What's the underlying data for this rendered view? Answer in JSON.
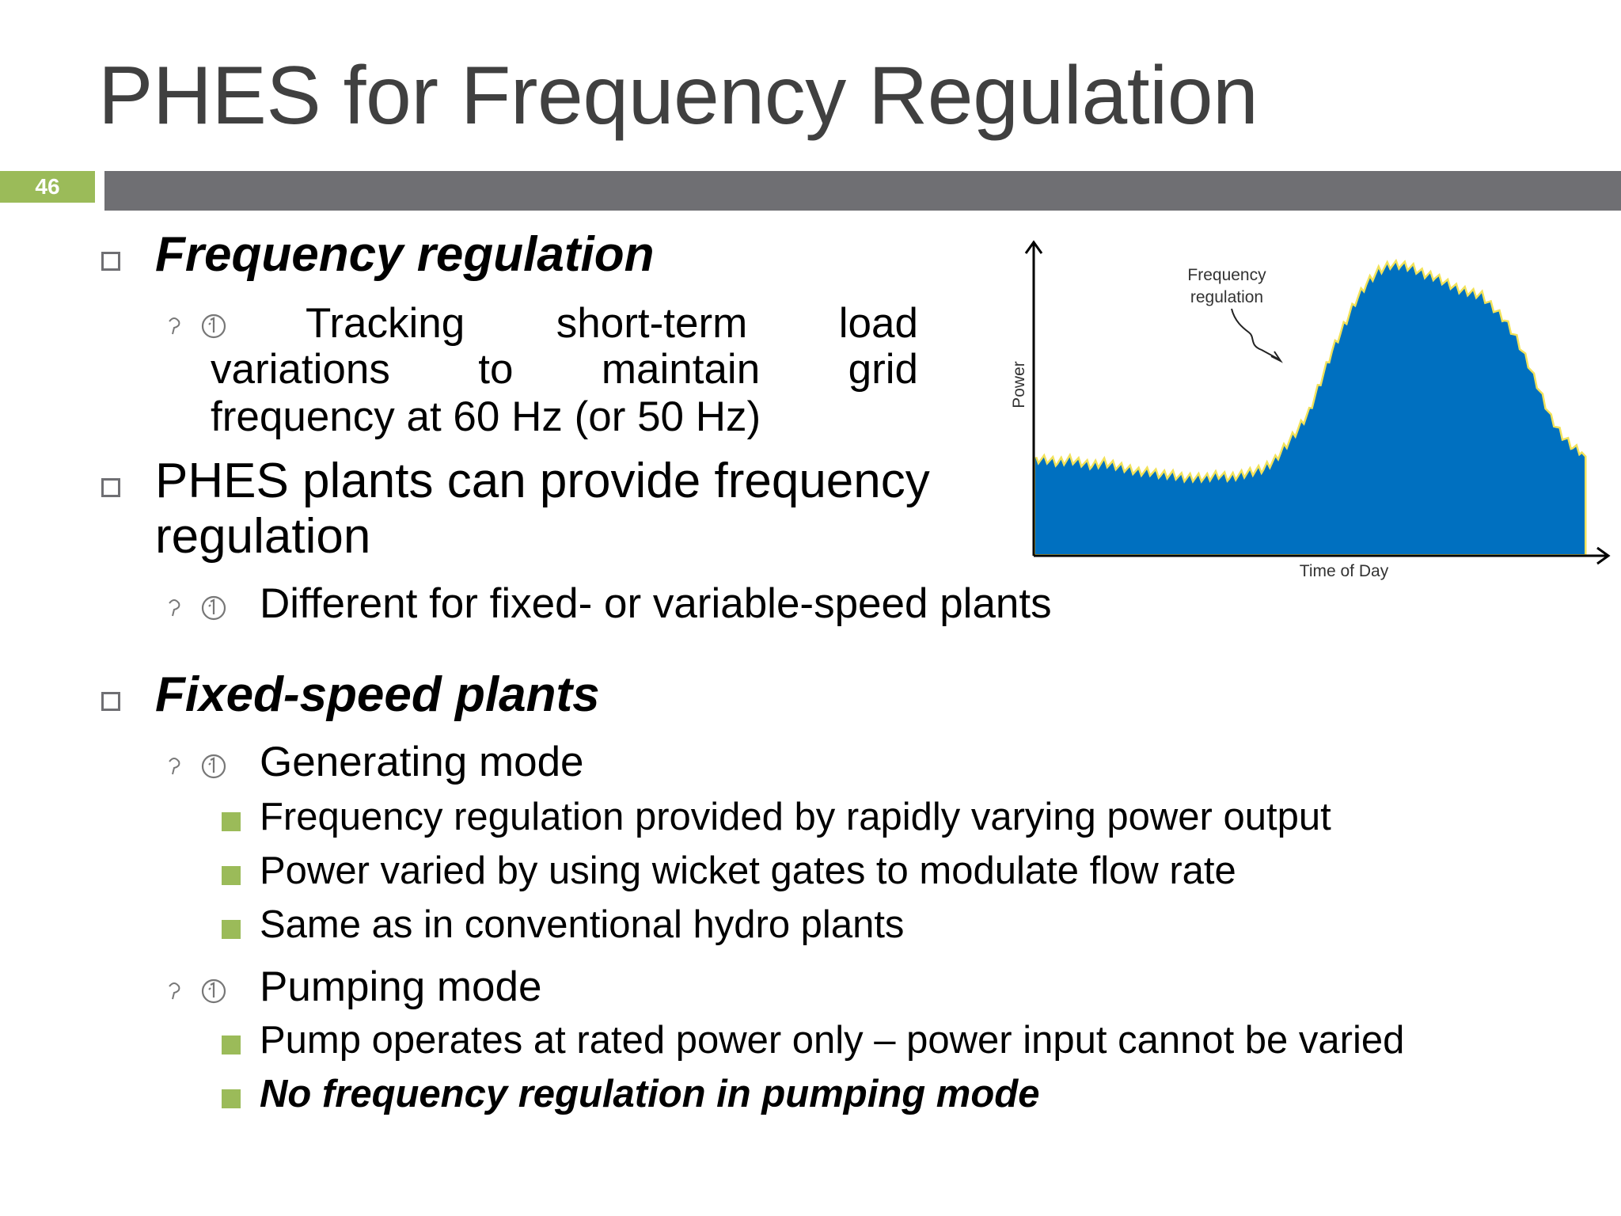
{
  "title": "PHES for Frequency Regulation",
  "slide_number": "46",
  "bullets": {
    "b1": {
      "heading": "Frequency regulation",
      "sub": {
        "line1": [
          "Tracking",
          "short-term",
          "load"
        ],
        "line2": [
          "variations",
          "to",
          "maintain",
          "grid"
        ],
        "line3": "frequency at 60 Hz (or 50 Hz)"
      }
    },
    "b2": {
      "line1": "PHES plants can provide frequency",
      "line2": "regulation",
      "sub": "Different for fixed- or variable-speed plants"
    },
    "b3": {
      "heading": "Fixed-speed plants",
      "generating": {
        "label": "Generating mode",
        "items": [
          "Frequency regulation provided by rapidly varying power output",
          "Power varied by using wicket gates to modulate flow rate",
          "Same as in conventional hydro plants"
        ]
      },
      "pumping": {
        "label": "Pumping mode",
        "items": [
          "Pump operates at rated power only – power input cannot be varied",
          "No frequency regulation in pumping mode"
        ]
      }
    }
  },
  "chart_data": {
    "type": "area",
    "xlabel": "Time of Day",
    "ylabel": "Power",
    "annotation": [
      "Frequency",
      "regulation"
    ],
    "y": [
      0.3,
      0.3,
      0.29,
      0.3,
      0.29,
      0.28,
      0.29,
      0.28,
      0.27,
      0.26,
      0.26,
      0.25,
      0.25,
      0.24,
      0.24,
      0.24,
      0.25,
      0.24,
      0.25,
      0.26,
      0.27,
      0.3,
      0.35,
      0.4,
      0.46,
      0.56,
      0.66,
      0.74,
      0.82,
      0.88,
      0.92,
      0.94,
      0.94,
      0.93,
      0.91,
      0.9,
      0.88,
      0.86,
      0.85,
      0.84,
      0.8,
      0.76,
      0.7,
      0.62,
      0.53,
      0.44,
      0.38,
      0.34,
      0.32
    ],
    "area_color": "#0070c0",
    "noise_color": "#f2e25a"
  }
}
